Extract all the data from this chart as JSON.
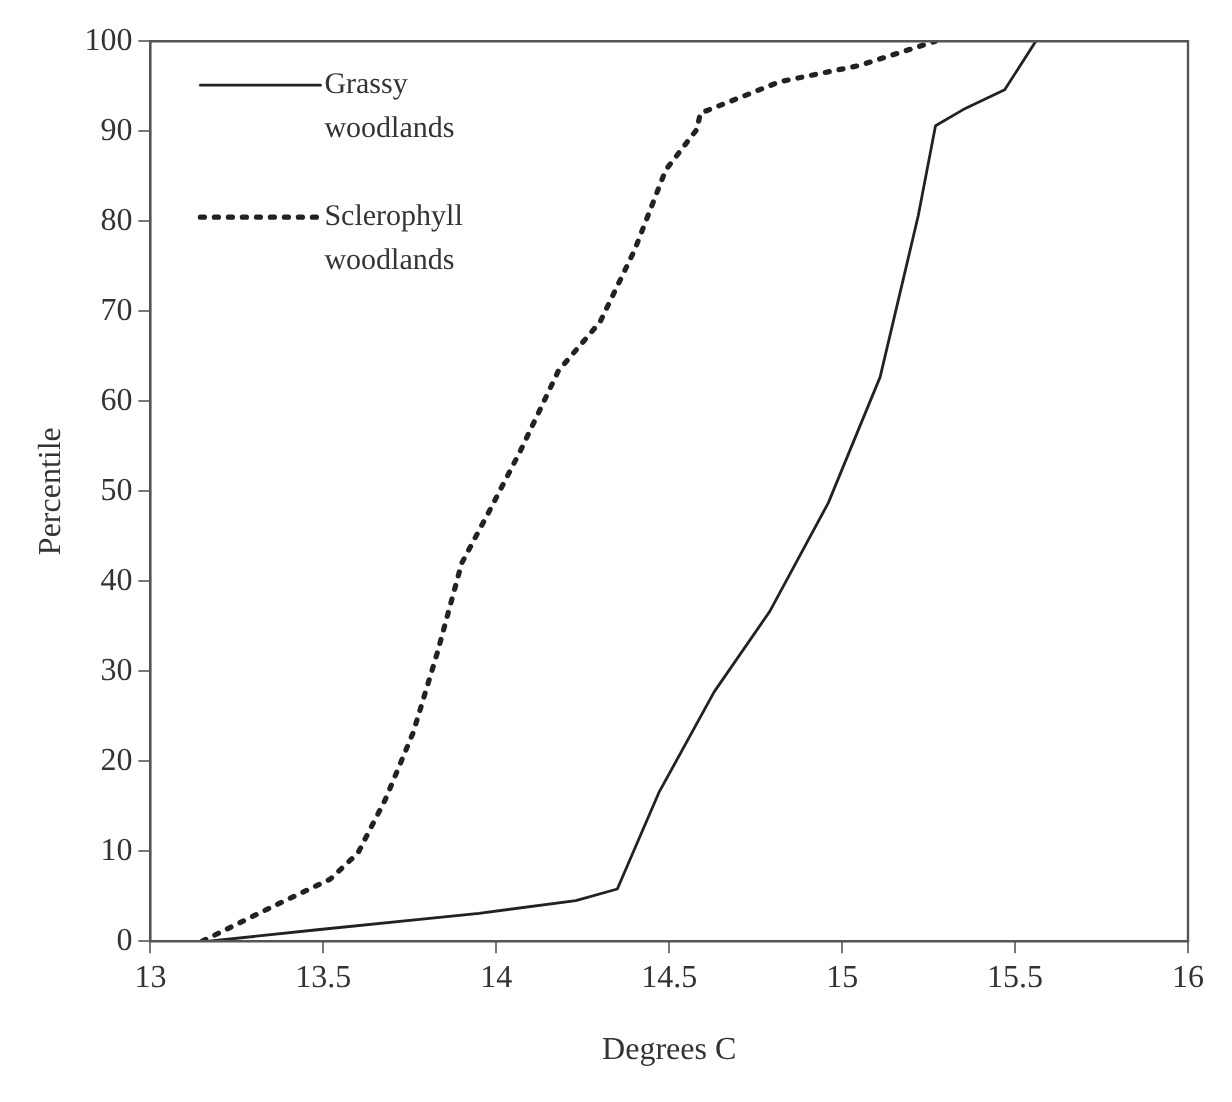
{
  "chart_data": {
    "type": "line",
    "xlabel": "Degrees C",
    "ylabel": "Percentile",
    "xlim": [
      13,
      16
    ],
    "xticks": [
      13,
      13.5,
      14,
      14.5,
      15,
      15.5,
      16
    ],
    "ylim": [
      0,
      100
    ],
    "yticks": [
      0,
      10,
      20,
      30,
      40,
      50,
      60,
      70,
      80,
      90,
      100
    ],
    "grid": false,
    "legend": "top left",
    "marker": "none",
    "series": [
      {
        "name": "Grassy woodlands",
        "color": "#222222",
        "line_style": "solid",
        "x": [
          13.17,
          13.49,
          13.8,
          13.95,
          14.23,
          14.35,
          14.47,
          14.63,
          14.79,
          14.96,
          15.11,
          15.22,
          15.27,
          15.35,
          15.47,
          15.56
        ],
        "values": [
          0,
          1.3,
          2.5,
          3.1,
          4.5,
          5.8,
          16.5,
          27.7,
          36.6,
          48.7,
          62.7,
          80.6,
          90.6,
          92.4,
          94.6,
          100
        ]
      },
      {
        "name": "Sclerophyll woodlands",
        "color": "#222222",
        "line_style": "dotted",
        "x": [
          13.15,
          13.34,
          13.52,
          13.6,
          13.68,
          13.76,
          13.83,
          13.9,
          13.98,
          14.07,
          14.18,
          14.3,
          14.4,
          14.49,
          14.58,
          14.59,
          14.82,
          15.05,
          15.27
        ],
        "values": [
          0,
          3.6,
          6.9,
          9.8,
          15.8,
          23.2,
          32.1,
          42,
          47.8,
          54.5,
          63.4,
          68.8,
          76.8,
          85.7,
          90.2,
          92,
          95.5,
          97.3,
          100
        ]
      }
    ]
  }
}
